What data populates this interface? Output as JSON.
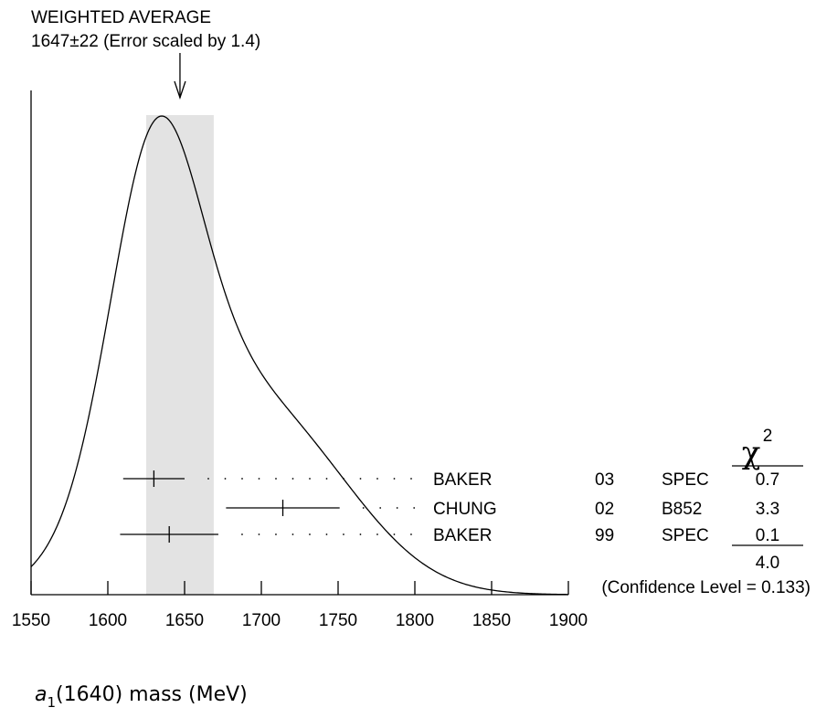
{
  "chart_data": {
    "type": "ideogram",
    "header": {
      "line1": "WEIGHTED AVERAGE",
      "line2": "1647±22 (Error scaled by 1.4)"
    },
    "average": {
      "value": 1647,
      "error": 22,
      "scale_factor": 1.4,
      "band": [
        1625,
        1669
      ]
    },
    "x_ticks": [
      1550,
      1600,
      1650,
      1700,
      1750,
      1800,
      1850,
      1900
    ],
    "xlim": [
      1550,
      1900
    ],
    "xlabel": {
      "symbol": "a",
      "subscript": "1",
      "rest": "(1640) mass (MeV)"
    },
    "measurements": [
      {
        "author": "BAKER",
        "year": "03",
        "tech": "SPEC",
        "value": 1630,
        "error": 20,
        "chi2": "0.7"
      },
      {
        "author": "CHUNG",
        "year": "02",
        "tech": "B852",
        "value": 1714,
        "error": 37,
        "chi2": "3.3"
      },
      {
        "author": "BAKER",
        "year": "99",
        "tech": "SPEC",
        "value": 1640,
        "error": 32,
        "chi2": "0.1"
      }
    ],
    "chi2_header": {
      "symbol": "χ",
      "exponent": "2"
    },
    "chi2_total": "4.0",
    "confidence_level": "(Confidence Level = 0.133)"
  }
}
